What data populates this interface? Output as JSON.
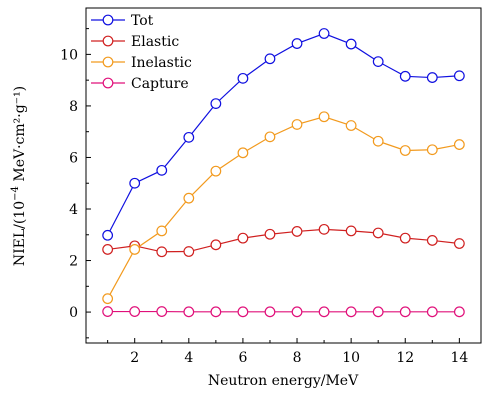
{
  "chart_data": {
    "type": "line",
    "title": "",
    "xlabel": "Neutron energy/MeV",
    "ylabel_main": "NIEL/(10",
    "ylabel_exp": "−4",
    "ylabel_units": " MeV·cm²·g⁻¹)",
    "xlim": [
      0.2,
      14.8
    ],
    "ylim": [
      -1.2,
      11.8
    ],
    "x_ticks": [
      2,
      4,
      6,
      8,
      10,
      12,
      14
    ],
    "y_ticks": [
      0,
      2,
      4,
      6,
      8,
      10
    ],
    "grid": false,
    "legend_position": "top-left",
    "x": [
      1,
      2,
      3,
      4,
      5,
      6,
      7,
      8,
      9,
      10,
      11,
      12,
      13,
      14
    ],
    "series": [
      {
        "name": "Tot",
        "color": "#1010e0",
        "values": [
          2.98,
          5.0,
          5.5,
          6.78,
          8.09,
          9.07,
          9.83,
          10.42,
          10.81,
          10.4,
          9.72,
          9.15,
          9.1,
          9.17
        ]
      },
      {
        "name": "Elastic",
        "color": "#d02020",
        "values": [
          2.43,
          2.57,
          2.34,
          2.35,
          2.61,
          2.87,
          3.02,
          3.13,
          3.21,
          3.15,
          3.07,
          2.87,
          2.78,
          2.66
        ]
      },
      {
        "name": "Inelastic",
        "color": "#f29a1e",
        "values": [
          0.52,
          2.43,
          3.15,
          4.42,
          5.47,
          6.18,
          6.8,
          7.28,
          7.58,
          7.24,
          6.63,
          6.27,
          6.3,
          6.5
        ]
      },
      {
        "name": "Capture",
        "color": "#e0107a",
        "values": [
          0.02,
          0.02,
          0.02,
          0.01,
          0.01,
          0.01,
          0.01,
          0.01,
          0.01,
          0.01,
          0.01,
          0.01,
          0.01,
          0.01
        ]
      }
    ]
  }
}
